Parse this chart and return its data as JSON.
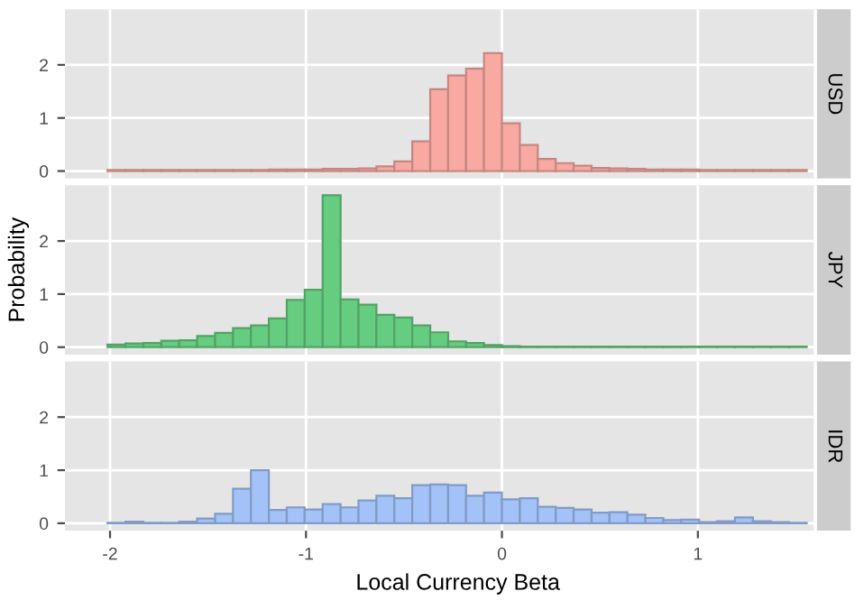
{
  "chart_data": [
    {
      "type": "histogram",
      "title": "USD",
      "color": "#f8a9a2",
      "bins": [
        -2.013,
        -1.9215,
        -1.83,
        -1.7385,
        -1.647,
        -1.5555,
        -1.464,
        -1.3725,
        -1.281,
        -1.1895,
        -1.098,
        -1.0065,
        -0.915,
        -0.8235,
        -0.732,
        -0.6405,
        -0.549,
        -0.4575,
        -0.366,
        -0.2745,
        -0.183,
        -0.0915,
        0.0,
        0.0915,
        0.183,
        0.2745,
        0.366,
        0.4575,
        0.549,
        0.6405,
        0.732,
        0.8235,
        0.915,
        1.0065,
        1.098,
        1.1895,
        1.281,
        1.3725,
        1.464,
        1.5555
      ],
      "values": [
        0.02,
        0.02,
        0.02,
        0.02,
        0.02,
        0.02,
        0.02,
        0.02,
        0.02,
        0.03,
        0.03,
        0.03,
        0.04,
        0.04,
        0.05,
        0.09,
        0.18,
        0.56,
        1.54,
        1.8,
        1.93,
        2.22,
        0.9,
        0.49,
        0.23,
        0.15,
        0.1,
        0.06,
        0.05,
        0.04,
        0.03,
        0.03,
        0.03,
        0.02,
        0.02,
        0.02,
        0.02,
        0.02,
        0.02
      ],
      "xlim": [
        -2.23,
        1.78
      ],
      "ylim": [
        -0.14,
        3.05
      ],
      "xticks": [
        -2,
        -1,
        0,
        1
      ],
      "yticks": [
        0,
        1,
        2
      ],
      "grid": true,
      "tick_labels": "y"
    },
    {
      "type": "histogram",
      "title": "JPY",
      "ylabel": "Probability",
      "color": "#66cc80",
      "bins": [
        -2.013,
        -1.9215,
        -1.83,
        -1.7385,
        -1.647,
        -1.5555,
        -1.464,
        -1.3725,
        -1.281,
        -1.1895,
        -1.098,
        -1.0065,
        -0.915,
        -0.8235,
        -0.732,
        -0.6405,
        -0.549,
        -0.4575,
        -0.366,
        -0.2745,
        -0.183,
        -0.0915,
        0.0,
        0.0915,
        0.183,
        0.2745,
        0.366,
        0.4575,
        0.549,
        0.6405,
        0.732,
        0.8235,
        0.915,
        1.0065,
        1.098,
        1.1895,
        1.281,
        1.3725,
        1.464,
        1.5555
      ],
      "values": [
        0.05,
        0.07,
        0.08,
        0.12,
        0.13,
        0.21,
        0.27,
        0.36,
        0.41,
        0.54,
        0.89,
        1.08,
        2.86,
        0.9,
        0.8,
        0.61,
        0.56,
        0.41,
        0.28,
        0.11,
        0.08,
        0.04,
        0.02,
        0.01,
        0.01,
        0.01,
        0.01,
        0.01,
        0.01,
        0.01,
        0.01,
        0.01,
        0.01,
        0.01,
        0.01,
        0.01,
        0.01,
        0.01,
        0.01
      ],
      "xlim": [
        -2.23,
        1.78
      ],
      "ylim": [
        -0.14,
        3.05
      ],
      "xticks": [
        -2,
        -1,
        0,
        1
      ],
      "yticks": [
        0,
        1,
        2
      ],
      "grid": true,
      "tick_labels": "y"
    },
    {
      "type": "histogram",
      "title": "IDR",
      "xlabel": "Local Currency Beta",
      "color": "#a3c2f7",
      "bins": [
        -2.013,
        -1.9215,
        -1.83,
        -1.7385,
        -1.647,
        -1.5555,
        -1.464,
        -1.3725,
        -1.281,
        -1.1895,
        -1.098,
        -1.0065,
        -0.915,
        -0.8235,
        -0.732,
        -0.6405,
        -0.549,
        -0.4575,
        -0.366,
        -0.2745,
        -0.183,
        -0.0915,
        0.0,
        0.0915,
        0.183,
        0.2745,
        0.366,
        0.4575,
        0.549,
        0.6405,
        0.732,
        0.8235,
        0.915,
        1.0065,
        1.098,
        1.1895,
        1.281,
        1.3725,
        1.464,
        1.5555
      ],
      "values": [
        0.01,
        0.03,
        0.01,
        0.01,
        0.03,
        0.09,
        0.18,
        0.65,
        1.0,
        0.25,
        0.3,
        0.26,
        0.36,
        0.3,
        0.43,
        0.52,
        0.47,
        0.72,
        0.73,
        0.72,
        0.52,
        0.58,
        0.45,
        0.47,
        0.31,
        0.29,
        0.26,
        0.2,
        0.21,
        0.16,
        0.1,
        0.06,
        0.07,
        0.02,
        0.04,
        0.11,
        0.04,
        0.02,
        0.01
      ],
      "xlim": [
        -2.23,
        1.78
      ],
      "ylim": [
        -0.14,
        3.05
      ],
      "xticks": [
        -2,
        -1,
        0,
        1
      ],
      "yticks": [
        0,
        1,
        2
      ],
      "grid": true
    }
  ]
}
